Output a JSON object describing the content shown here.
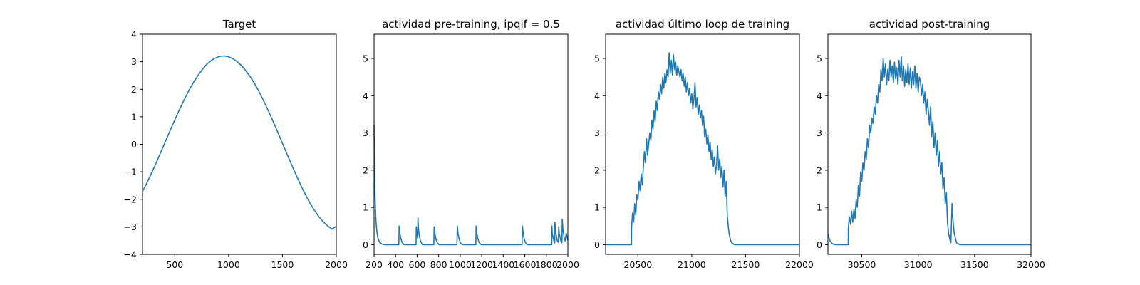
{
  "chart_data": [
    {
      "type": "line",
      "title": "Target",
      "xlabel": "",
      "ylabel": "",
      "xlim": [
        200,
        2000
      ],
      "ylim": [
        -4,
        4
      ],
      "xticks": [
        500,
        1000,
        1500,
        2000
      ],
      "yticks": [
        -4,
        -3,
        -2,
        -1,
        0,
        1,
        2,
        3,
        4
      ],
      "grid": false,
      "color": "#1f77b4",
      "series": [
        {
          "x": [
            200,
            240,
            280,
            320,
            360,
            400,
            440,
            480,
            520,
            560,
            600,
            640,
            680,
            720,
            760,
            800,
            840,
            880,
            920,
            960,
            1000,
            1040,
            1080,
            1120,
            1160,
            1200,
            1240,
            1280,
            1320,
            1360,
            1400,
            1440,
            1480,
            1520,
            1560,
            1600,
            1640,
            1680,
            1720,
            1760,
            1800,
            1840,
            1880,
            1920,
            1960,
            2000
          ],
          "y": [
            -1.72,
            -1.41,
            -1.08,
            -0.74,
            -0.38,
            -0.02,
            0.35,
            0.71,
            1.06,
            1.4,
            1.72,
            2.02,
            2.29,
            2.53,
            2.74,
            2.92,
            3.05,
            3.14,
            3.2,
            3.21,
            3.18,
            3.11,
            3.0,
            2.86,
            2.67,
            2.46,
            2.21,
            1.93,
            1.62,
            1.29,
            0.95,
            0.59,
            0.22,
            -0.15,
            -0.52,
            -0.88,
            -1.23,
            -1.57,
            -1.88,
            -2.17,
            -2.42,
            -2.64,
            -2.82,
            -2.97,
            -3.08,
            -2.98
          ]
        }
      ]
    },
    {
      "type": "line",
      "title": "actividad pre-training, ipqif = 0.5",
      "xlabel": "",
      "ylabel": "",
      "xlim": [
        200,
        2000
      ],
      "ylim": [
        -0.26,
        5.65
      ],
      "xticks": [
        200,
        400,
        600,
        800,
        1000,
        1200,
        1400,
        1600,
        1800,
        2000
      ],
      "yticks": [
        0,
        1,
        2,
        3,
        4,
        5
      ],
      "grid": false,
      "color": "#1f77b4",
      "series": [
        {
          "x": [
            200,
            203,
            207,
            212,
            218,
            226,
            236,
            250,
            270,
            300,
            420,
            430,
            433,
            440,
            450,
            462,
            480,
            580,
            590,
            592,
            597,
            605,
            608,
            612,
            620,
            632,
            650,
            750,
            755,
            758,
            765,
            775,
            787,
            805,
            960,
            970,
            973,
            980,
            990,
            1002,
            1020,
            1140,
            1145,
            1148,
            1155,
            1165,
            1177,
            1195,
            1565,
            1575,
            1578,
            1585,
            1595,
            1607,
            1625,
            1850,
            1852,
            1855,
            1870,
            1878,
            1880,
            1885,
            1900,
            1912,
            1915,
            1920,
            1935,
            1945,
            1948,
            1953,
            1965,
            1975,
            1985,
            1995,
            2000
          ],
          "y": [
            3.22,
            2.3,
            1.55,
            1.0,
            0.62,
            0.35,
            0.18,
            0.07,
            0.02,
            0.0,
            0.0,
            0.0,
            0.5,
            0.3,
            0.15,
            0.05,
            0.0,
            0.0,
            0.0,
            0.48,
            0.3,
            0.18,
            0.72,
            0.45,
            0.25,
            0.09,
            0.0,
            0.0,
            0.0,
            0.48,
            0.3,
            0.15,
            0.05,
            0.0,
            0.0,
            0.0,
            0.5,
            0.3,
            0.15,
            0.05,
            0.0,
            0.0,
            0.0,
            0.5,
            0.3,
            0.15,
            0.05,
            0.0,
            0.0,
            0.0,
            0.5,
            0.3,
            0.15,
            0.05,
            0.0,
            0.0,
            0.5,
            0.3,
            0.1,
            0.05,
            0.6,
            0.4,
            0.12,
            0.06,
            0.48,
            0.3,
            0.1,
            0.05,
            0.68,
            0.45,
            0.2,
            0.1,
            0.3,
            0.18,
            0.12
          ]
        }
      ]
    },
    {
      "type": "line",
      "title": "actividad último loop de training",
      "xlabel": "",
      "ylabel": "",
      "xlim": [
        20200,
        22000
      ],
      "ylim": [
        -0.26,
        5.65
      ],
      "xticks": [
        20500,
        21000,
        21500,
        22000
      ],
      "yticks": [
        0,
        1,
        2,
        3,
        4,
        5
      ],
      "grid": false,
      "color": "#1f77b4",
      "series": [
        {
          "x": [
            20200,
            20440,
            20441,
            20450,
            20460,
            20470,
            20480,
            20490,
            20500,
            20510,
            20520,
            20530,
            20540,
            20550,
            20560,
            20570,
            20580,
            20590,
            20600,
            20610,
            20620,
            20630,
            20640,
            20650,
            20660,
            20670,
            20680,
            20690,
            20700,
            20710,
            20720,
            20730,
            20740,
            20750,
            20760,
            20770,
            20780,
            20790,
            20800,
            20810,
            20820,
            20830,
            20840,
            20850,
            20860,
            20870,
            20880,
            20890,
            20900,
            20910,
            20920,
            20930,
            20940,
            20950,
            20960,
            20970,
            20980,
            20990,
            21000,
            21010,
            21020,
            21030,
            21040,
            21050,
            21060,
            21070,
            21080,
            21090,
            21100,
            21110,
            21120,
            21130,
            21140,
            21150,
            21160,
            21170,
            21180,
            21190,
            21200,
            21210,
            21220,
            21230,
            21240,
            21250,
            21260,
            21270,
            21280,
            21290,
            21300,
            21310,
            21320,
            21330,
            21340,
            21350,
            21360,
            21370,
            21380,
            21390,
            21400,
            21420,
            21450,
            21500,
            22000
          ],
          "y": [
            0.0,
            0.0,
            0.45,
            0.85,
            0.6,
            1.1,
            0.8,
            1.35,
            1.2,
            1.7,
            1.45,
            1.9,
            1.6,
            2.05,
            2.5,
            2.2,
            2.85,
            2.4,
            2.7,
            3.0,
            2.8,
            3.35,
            3.1,
            3.6,
            3.3,
            3.85,
            3.6,
            4.1,
            3.9,
            4.3,
            4.05,
            4.5,
            4.2,
            4.6,
            4.35,
            4.7,
            4.5,
            5.15,
            4.6,
            4.95,
            4.55,
            5.1,
            4.7,
            4.9,
            4.55,
            4.8,
            4.65,
            4.5,
            4.7,
            4.4,
            4.6,
            4.25,
            4.5,
            4.1,
            4.35,
            4.0,
            4.2,
            3.8,
            4.05,
            3.65,
            3.9,
            4.35,
            3.7,
            3.95,
            3.5,
            3.75,
            3.4,
            3.6,
            3.2,
            3.45,
            2.9,
            3.1,
            2.7,
            2.95,
            2.5,
            2.75,
            2.3,
            2.55,
            2.1,
            2.35,
            1.9,
            2.15,
            2.65,
            2.0,
            2.3,
            1.8,
            2.1,
            1.55,
            2.0,
            1.3,
            1.7,
            0.8,
            0.45,
            0.25,
            0.12,
            0.06,
            0.03,
            0.01,
            0.0,
            0.0,
            0.0,
            0.0,
            0.0
          ]
        }
      ]
    },
    {
      "type": "line",
      "title": "actividad post-training",
      "xlabel": "",
      "ylabel": "",
      "xlim": [
        30200,
        32000
      ],
      "ylim": [
        -0.26,
        5.65
      ],
      "xticks": [
        30500,
        31000,
        31500,
        32000
      ],
      "yticks": [
        0,
        1,
        2,
        3,
        4,
        5
      ],
      "grid": false,
      "color": "#1f77b4",
      "series": [
        {
          "x": [
            30200,
            30210,
            30220,
            30235,
            30250,
            30270,
            30300,
            30380,
            30381,
            30390,
            30400,
            30410,
            30420,
            30430,
            30440,
            30450,
            30460,
            30470,
            30480,
            30490,
            30500,
            30510,
            30520,
            30530,
            30540,
            30550,
            30560,
            30570,
            30580,
            30590,
            30600,
            30610,
            30620,
            30630,
            30640,
            30650,
            30660,
            30670,
            30680,
            30690,
            30700,
            30710,
            30720,
            30730,
            30740,
            30750,
            30760,
            30770,
            30780,
            30790,
            30800,
            30810,
            30820,
            30830,
            30840,
            30850,
            30860,
            30870,
            30880,
            30890,
            30900,
            30910,
            30920,
            30930,
            30940,
            30950,
            30960,
            30970,
            30980,
            30990,
            31000,
            31010,
            31020,
            31030,
            31040,
            31050,
            31060,
            31070,
            31080,
            31090,
            31100,
            31110,
            31120,
            31130,
            31140,
            31150,
            31160,
            31170,
            31180,
            31190,
            31200,
            31210,
            31220,
            31230,
            31240,
            31250,
            31260,
            31270,
            31280,
            31290,
            31300,
            31310,
            31320,
            31340,
            31370,
            31400,
            31500,
            32000
          ],
          "y": [
            0.3,
            0.18,
            0.1,
            0.04,
            0.01,
            0.0,
            0.0,
            0.0,
            0.45,
            0.75,
            0.55,
            0.9,
            0.6,
            0.95,
            0.7,
            1.2,
            1.0,
            1.6,
            1.3,
            1.95,
            1.7,
            2.2,
            2.0,
            2.5,
            2.3,
            2.85,
            2.6,
            3.2,
            3.0,
            3.4,
            3.25,
            3.7,
            3.5,
            4.0,
            3.8,
            4.3,
            4.1,
            4.7,
            4.4,
            5.0,
            4.5,
            4.85,
            4.3,
            4.7,
            4.4,
            4.95,
            4.5,
            4.8,
            4.35,
            4.9,
            4.45,
            4.75,
            4.3,
            4.95,
            4.5,
            5.05,
            4.4,
            4.8,
            4.25,
            4.7,
            4.35,
            4.85,
            4.3,
            4.75,
            4.2,
            4.65,
            4.3,
            4.8,
            4.2,
            4.6,
            4.1,
            4.5,
            4.4,
            4.0,
            4.3,
            3.8,
            4.1,
            3.5,
            3.9,
            3.6,
            3.2,
            3.7,
            2.9,
            3.3,
            2.6,
            3.0,
            2.4,
            2.8,
            2.1,
            2.5,
            1.9,
            2.2,
            1.5,
            1.8,
            1.1,
            1.4,
            0.6,
            0.3,
            0.15,
            0.05,
            1.1,
            0.6,
            0.3,
            0.05,
            0.0,
            0.0,
            0.0,
            0.0
          ]
        }
      ]
    }
  ]
}
